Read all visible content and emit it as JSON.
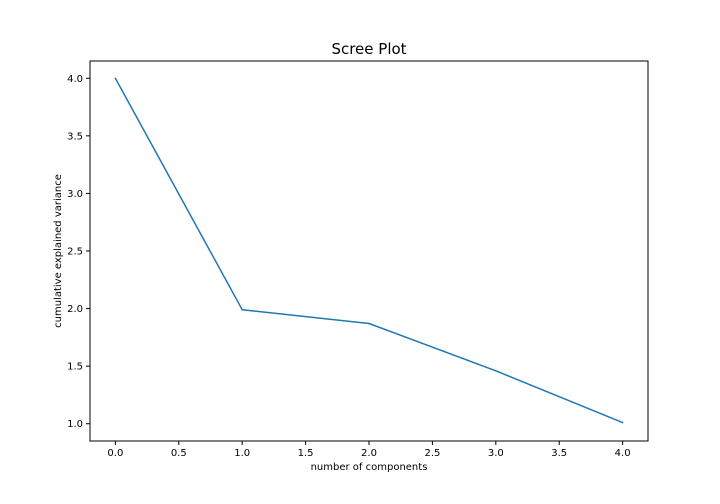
{
  "chart_data": {
    "type": "line",
    "title": "Scree Plot",
    "xlabel": "number of components",
    "ylabel": "cumulative explained variance",
    "x": [
      0,
      1,
      2,
      3,
      4
    ],
    "series": [
      {
        "values": [
          4.0,
          1.99,
          1.87,
          1.46,
          1.01
        ],
        "color": "#1f77b4"
      }
    ],
    "xlim": [
      -0.2,
      4.2
    ],
    "ylim": [
      0.85,
      4.15
    ],
    "xticks": [
      0.0,
      0.5,
      1.0,
      1.5,
      2.0,
      2.5,
      3.0,
      3.5,
      4.0
    ],
    "xtick_labels": [
      "0.0",
      "0.5",
      "1.0",
      "1.5",
      "2.0",
      "2.5",
      "3.0",
      "3.5",
      "4.0"
    ],
    "yticks": [
      1.0,
      1.5,
      2.0,
      2.5,
      3.0,
      3.5,
      4.0
    ],
    "ytick_labels": [
      "1.0",
      "1.5",
      "2.0",
      "2.5",
      "3.0",
      "3.5",
      "4.0"
    ],
    "grid": false,
    "legend": false
  }
}
